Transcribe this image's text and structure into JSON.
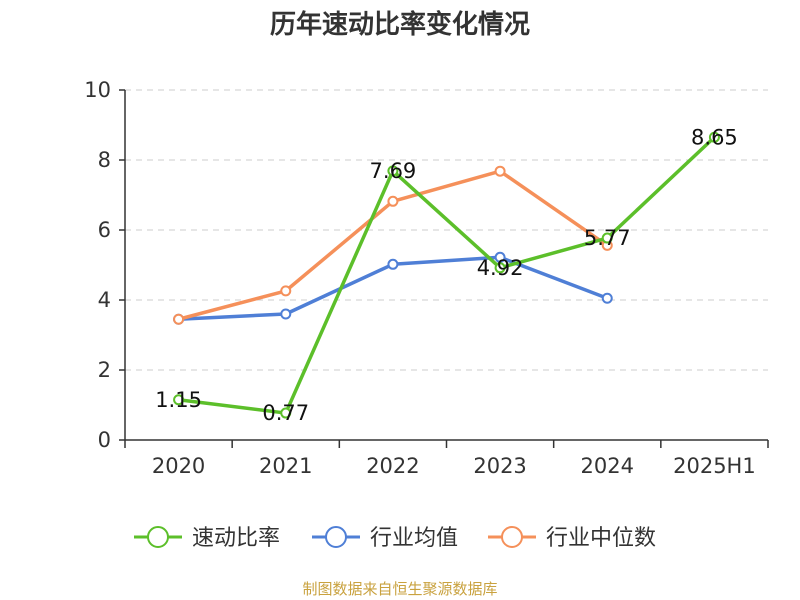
{
  "chart_data": {
    "type": "line",
    "title": "历年速动比率变化情况",
    "categories": [
      "2020",
      "2021",
      "2022",
      "2023",
      "2024",
      "2025H1"
    ],
    "ylim": [
      0,
      10
    ],
    "yticks": [
      0,
      2,
      4,
      6,
      8,
      10
    ],
    "grid": true,
    "legend_position": "bottom",
    "series": [
      {
        "name": "速动比率",
        "color": "#5cbf2a",
        "values": [
          1.15,
          0.77,
          7.69,
          4.92,
          5.77,
          8.65
        ],
        "labels": [
          "1.15",
          "0.77",
          "7.69",
          "4.92",
          "5.77",
          "8.65"
        ]
      },
      {
        "name": "行业均值",
        "color": "#4f7fd6",
        "values": [
          3.45,
          3.6,
          5.02,
          5.22,
          4.05,
          null
        ]
      },
      {
        "name": "行业中位数",
        "color": "#f5905a",
        "values": [
          3.45,
          4.26,
          6.82,
          7.68,
          5.56,
          null
        ]
      }
    ]
  },
  "source": "制图数据来自恒生聚源数据库"
}
